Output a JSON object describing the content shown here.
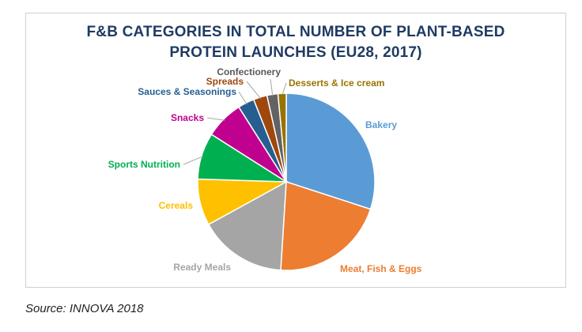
{
  "chart_data": {
    "type": "pie",
    "title_lines": [
      "F&B CATEGORIES IN TOTAL NUMBER OF PLANT-BASED",
      "PROTEIN LAUNCHES (EU28, 2017)"
    ],
    "slices": [
      {
        "label": "Bakery",
        "value": 30.0,
        "color": "#5b9bd5",
        "label_color": "#5b9bd5"
      },
      {
        "label": "Meat, Fish & Eggs",
        "value": 21.0,
        "color": "#ed7d31",
        "label_color": "#ed7d31"
      },
      {
        "label": "Ready Meals",
        "value": 16.0,
        "color": "#a5a5a5",
        "label_color": "#a5a5a5"
      },
      {
        "label": "Cereals",
        "value": 8.5,
        "color": "#ffc000",
        "label_color": "#ffc000"
      },
      {
        "label": "Sports Nutrition",
        "value": 8.5,
        "color": "#00b050",
        "label_color": "#00b050"
      },
      {
        "label": "Snacks",
        "value": 7.0,
        "color": "#c0008f",
        "label_color": "#c0008f"
      },
      {
        "label": "Sauces & Seasonings",
        "value": 3.0,
        "color": "#255e91",
        "label_color": "#255e91"
      },
      {
        "label": "Spreads",
        "value": 2.5,
        "color": "#9e480e",
        "label_color": "#9e480e"
      },
      {
        "label": "Confectionery",
        "value": 2.0,
        "color": "#636363",
        "label_color": "#595959"
      },
      {
        "label": "Desserts & Ice cream",
        "value": 1.5,
        "color": "#997300",
        "label_color": "#997300"
      }
    ],
    "legend": "none",
    "data_labels": "category-outside-with-leaders"
  },
  "source": "Source: INNOVA 2018"
}
